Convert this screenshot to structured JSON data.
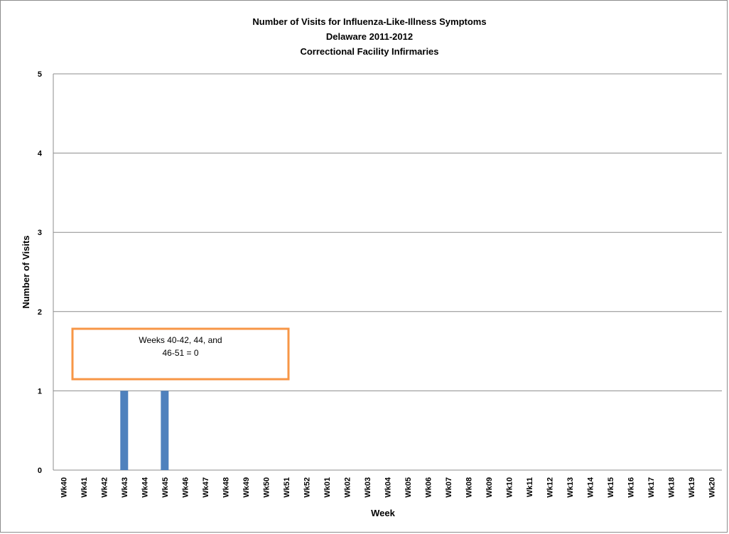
{
  "chart_data": {
    "type": "bar",
    "title": [
      "Number of Visits for Influenza-Like-Illness Symptoms",
      "Delaware 2011-2012",
      "Correctional Facility Infirmaries"
    ],
    "xlabel": "Week",
    "ylabel": "Number of Visits",
    "ylim": [
      0,
      5
    ],
    "yticks": [
      "0",
      "1",
      "2",
      "3",
      "4",
      "5"
    ],
    "grid": true,
    "legend": "none",
    "categories": [
      "Wk40",
      "Wk41",
      "Wk42",
      "Wk43",
      "Wk44",
      "Wk45",
      "Wk46",
      "Wk47",
      "Wk48",
      "Wk49",
      "Wk50",
      "Wk51",
      "Wk52",
      "Wk01",
      "Wk02",
      "Wk03",
      "Wk04",
      "Wk05",
      "Wk06",
      "Wk07",
      "Wk08",
      "Wk09",
      "Wk10",
      "Wk11",
      "Wk12",
      "Wk13",
      "Wk14",
      "Wk15",
      "Wk16",
      "Wk17",
      "Wk18",
      "Wk19",
      "Wk20"
    ],
    "values": [
      0,
      0,
      0,
      1,
      0,
      1,
      0,
      0,
      0,
      0,
      0,
      0,
      null,
      null,
      null,
      null,
      null,
      null,
      null,
      null,
      null,
      null,
      null,
      null,
      null,
      null,
      null,
      null,
      null,
      null,
      null,
      null,
      null
    ],
    "bar_color": "#4F81BD",
    "annotation": {
      "lines": [
        "Weeks 40-42, 44, and",
        "46-51 = 0"
      ],
      "border_color": "#F79646"
    }
  }
}
